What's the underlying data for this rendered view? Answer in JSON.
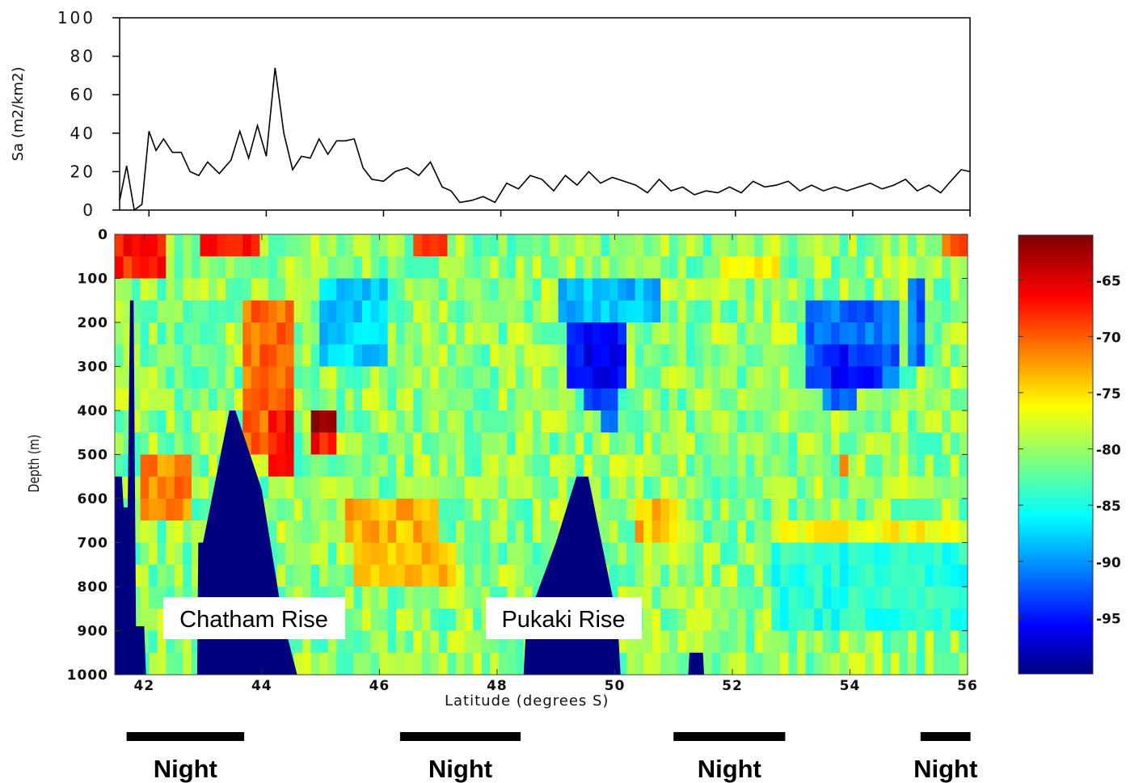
{
  "chart_data": [
    {
      "type": "line",
      "ylabel": "Sa (m2/km2)",
      "ylim": [
        0,
        100
      ],
      "yticks": [
        "100",
        "80",
        "60",
        "40",
        "20",
        "0"
      ],
      "xlim": [
        41.5,
        56
      ],
      "grid": false,
      "line_color": "#000000",
      "x": [
        41.5,
        41.62,
        41.75,
        41.88,
        42.0,
        42.12,
        42.25,
        42.4,
        42.55,
        42.7,
        42.85,
        43.0,
        43.2,
        43.4,
        43.55,
        43.7,
        43.85,
        44.0,
        44.15,
        44.3,
        44.45,
        44.6,
        44.75,
        44.9,
        45.05,
        45.2,
        45.35,
        45.5,
        45.65,
        45.8,
        46.0,
        46.2,
        46.4,
        46.6,
        46.8,
        47.0,
        47.15,
        47.3,
        47.5,
        47.7,
        47.9,
        48.1,
        48.3,
        48.5,
        48.7,
        48.9,
        49.1,
        49.3,
        49.5,
        49.7,
        49.9,
        50.1,
        50.3,
        50.5,
        50.7,
        50.9,
        51.1,
        51.3,
        51.5,
        51.7,
        51.9,
        52.1,
        52.3,
        52.5,
        52.7,
        52.9,
        53.1,
        53.3,
        53.5,
        53.7,
        53.9,
        54.1,
        54.3,
        54.5,
        54.7,
        54.9,
        55.1,
        55.3,
        55.5,
        55.7,
        55.85,
        56.0
      ],
      "y": [
        5,
        23,
        0,
        3,
        41,
        31,
        37,
        30,
        30,
        20,
        18,
        25,
        19,
        26,
        41,
        27,
        44,
        28,
        74,
        40,
        21,
        28,
        27,
        37,
        29,
        36,
        36,
        37,
        22,
        16,
        15,
        20,
        22,
        18,
        25,
        12,
        10,
        4,
        5,
        7,
        4,
        14,
        11,
        18,
        16,
        10,
        18,
        13,
        20,
        14,
        17,
        15,
        13,
        9,
        16,
        10,
        12,
        8,
        10,
        9,
        12,
        9,
        15,
        12,
        13,
        15,
        10,
        13,
        10,
        12,
        10,
        12,
        14,
        11,
        13,
        16,
        10,
        13,
        9,
        16,
        21,
        20
      ]
    },
    {
      "type": "heatmap",
      "xlabel": "Latitude (degrees S)",
      "ylabel": "Depth (m)",
      "xlim": [
        41.5,
        56
      ],
      "ylim": [
        1000,
        0
      ],
      "xticks": [
        "42",
        "44",
        "46",
        "48",
        "50",
        "52",
        "54",
        "56"
      ],
      "yticks": [
        "0",
        "100",
        "200",
        "300",
        "400",
        "500",
        "600",
        "700",
        "800",
        "900",
        "1000"
      ],
      "colorbar": {
        "range": [
          -100,
          -61
        ],
        "ticks": [
          "-65",
          "-70",
          "-75",
          "-80",
          "-85",
          "-90",
          "-95"
        ]
      },
      "background_value": -80,
      "seafloor_color": "#00007f",
      "seafloor": [
        {
          "lat": 41.5,
          "depth": 550
        },
        {
          "lat": 41.62,
          "depth": 550
        },
        {
          "lat": 41.65,
          "depth": 620
        },
        {
          "lat": 41.72,
          "depth": 620
        },
        {
          "lat": 41.76,
          "depth": 150
        },
        {
          "lat": 41.82,
          "depth": 150
        },
        {
          "lat": 41.86,
          "depth": 890
        },
        {
          "lat": 42.0,
          "depth": 890
        },
        {
          "lat": 42.03,
          "depth": 1000
        },
        {
          "lat": 42.9,
          "depth": 1000
        },
        {
          "lat": 42.92,
          "depth": 700
        },
        {
          "lat": 43.0,
          "depth": 700
        },
        {
          "lat": 43.45,
          "depth": 400
        },
        {
          "lat": 43.55,
          "depth": 400
        },
        {
          "lat": 44.0,
          "depth": 580
        },
        {
          "lat": 44.35,
          "depth": 870
        },
        {
          "lat": 44.6,
          "depth": 1000
        },
        {
          "lat": 48.45,
          "depth": 1000
        },
        {
          "lat": 48.5,
          "depth": 880
        },
        {
          "lat": 49.0,
          "depth": 700
        },
        {
          "lat": 49.35,
          "depth": 550
        },
        {
          "lat": 49.55,
          "depth": 550
        },
        {
          "lat": 50.05,
          "depth": 880
        },
        {
          "lat": 50.1,
          "depth": 1000
        },
        {
          "lat": 51.25,
          "depth": 1000
        },
        {
          "lat": 51.27,
          "depth": 950
        },
        {
          "lat": 51.5,
          "depth": 950
        },
        {
          "lat": 51.52,
          "depth": 1000
        }
      ],
      "regions": [
        {
          "lat": [
            41.5,
            42.3
          ],
          "depth": [
            0,
            100
          ],
          "value": -67
        },
        {
          "lat": [
            41.9,
            42.8
          ],
          "depth": [
            500,
            650
          ],
          "value": -71
        },
        {
          "lat": [
            42.9,
            43.9
          ],
          "depth": [
            0,
            60
          ],
          "value": -67
        },
        {
          "lat": [
            43.7,
            44.5
          ],
          "depth": [
            160,
            520
          ],
          "value": -70
        },
        {
          "lat": [
            44.1,
            44.5
          ],
          "depth": [
            400,
            560
          ],
          "value": -66
        },
        {
          "lat": [
            44.9,
            45.3
          ],
          "depth": [
            400,
            470
          ],
          "value": -62
        },
        {
          "lat": [
            44.9,
            45.2
          ],
          "depth": [
            470,
            520
          ],
          "value": -66
        },
        {
          "lat": [
            45.0,
            46.2
          ],
          "depth": [
            100,
            300
          ],
          "value": -87
        },
        {
          "lat": [
            45.4,
            46.2
          ],
          "depth": [
            590,
            720
          ],
          "value": -73
        },
        {
          "lat": [
            45.6,
            47.3
          ],
          "depth": [
            720,
            800
          ],
          "value": -73
        },
        {
          "lat": [
            45.9,
            47.0
          ],
          "depth": [
            620,
            720
          ],
          "value": -73
        },
        {
          "lat": [
            46.6,
            47.2
          ],
          "depth": [
            0,
            50
          ],
          "value": -67
        },
        {
          "lat": [
            49.0,
            50.8
          ],
          "depth": [
            100,
            200
          ],
          "value": -88
        },
        {
          "lat": [
            49.2,
            50.2
          ],
          "depth": [
            180,
            330
          ],
          "value": -95
        },
        {
          "lat": [
            49.5,
            50.1
          ],
          "depth": [
            330,
            400
          ],
          "value": -93
        },
        {
          "lat": [
            49.8,
            50.1
          ],
          "depth": [
            400,
            460
          ],
          "value": -92
        },
        {
          "lat": [
            53.2,
            54.8
          ],
          "depth": [
            160,
            360
          ],
          "value": -91
        },
        {
          "lat": [
            53.5,
            54.5
          ],
          "depth": [
            240,
            350
          ],
          "value": -94
        },
        {
          "lat": [
            53.6,
            54.1
          ],
          "depth": [
            360,
            400
          ],
          "value": -91
        },
        {
          "lat": [
            55.0,
            55.3
          ],
          "depth": [
            100,
            300
          ],
          "value": -91
        },
        {
          "lat": [
            51.8,
            52.8
          ],
          "depth": [
            50,
            120
          ],
          "value": -76
        },
        {
          "lat": [
            55.5,
            56.0
          ],
          "depth": [
            0,
            60
          ],
          "value": -70
        },
        {
          "lat": [
            52.6,
            56.0
          ],
          "depth": [
            660,
            720
          ],
          "value": -76
        },
        {
          "lat": [
            52.6,
            56.0
          ],
          "depth": [
            720,
            900
          ],
          "value": -84
        },
        {
          "lat": [
            53.8,
            53.95
          ],
          "depth": [
            500,
            550
          ],
          "value": -70
        },
        {
          "lat": [
            50.3,
            51.0
          ],
          "depth": [
            580,
            680
          ],
          "value": -73
        }
      ]
    }
  ],
  "annotations": {
    "chatham": "Chatham Rise",
    "pukaki": "Pukaki Rise"
  },
  "night_bars": [
    {
      "lat": [
        41.7,
        43.7
      ],
      "label": "Night"
    },
    {
      "lat": [
        46.35,
        48.4
      ],
      "label": "Night"
    },
    {
      "lat": [
        51.0,
        52.9
      ],
      "label": "Night"
    },
    {
      "lat": [
        55.2,
        56.05
      ],
      "label": "Night"
    }
  ]
}
